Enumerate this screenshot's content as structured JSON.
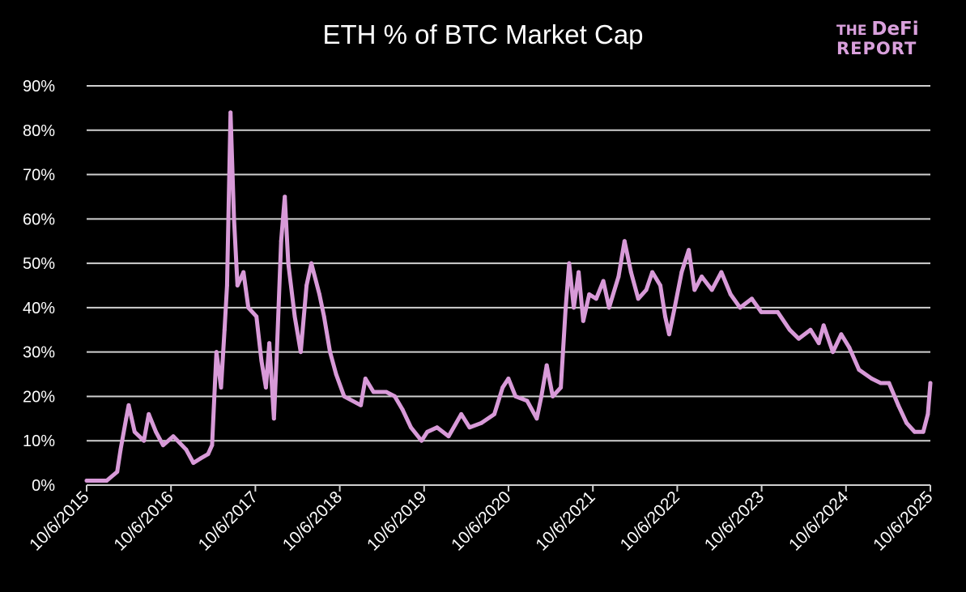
{
  "chart_data": {
    "type": "line",
    "title": "ETH % of BTC Market Cap",
    "xlabel": "",
    "ylabel": "",
    "ylim": [
      0,
      90
    ],
    "yticks": [
      "0%",
      "10%",
      "20%",
      "30%",
      "40%",
      "50%",
      "60%",
      "70%",
      "80%",
      "90%"
    ],
    "xlim": [
      "2015-10-06",
      "2025-10-06"
    ],
    "xticks": [
      "10/6/2015",
      "10/6/2016",
      "10/6/2017",
      "10/6/2018",
      "10/6/2019",
      "10/6/2020",
      "10/6/2021",
      "10/6/2022",
      "10/6/2023",
      "10/6/2024",
      "10/6/2025"
    ],
    "grid": true,
    "line_color": "#d89ad8",
    "series": [
      {
        "points": [
          [
            "2015-10-06",
            1
          ],
          [
            "2016-01-01",
            1
          ],
          [
            "2016-02-15",
            3
          ],
          [
            "2016-03-01",
            8
          ],
          [
            "2016-03-25",
            15
          ],
          [
            "2016-04-05",
            18
          ],
          [
            "2016-05-01",
            12
          ],
          [
            "2016-06-10",
            10
          ],
          [
            "2016-07-01",
            16
          ],
          [
            "2016-08-01",
            12
          ],
          [
            "2016-09-01",
            9
          ],
          [
            "2016-10-15",
            11
          ],
          [
            "2016-12-10",
            8
          ],
          [
            "2017-01-10",
            5
          ],
          [
            "2017-02-10",
            6
          ],
          [
            "2017-03-15",
            7
          ],
          [
            "2017-04-01",
            9
          ],
          [
            "2017-04-20",
            30
          ],
          [
            "2017-05-10",
            22
          ],
          [
            "2017-05-25",
            35
          ],
          [
            "2017-06-05",
            45
          ],
          [
            "2017-06-20",
            84
          ],
          [
            "2017-07-05",
            60
          ],
          [
            "2017-07-20",
            45
          ],
          [
            "2017-08-15",
            48
          ],
          [
            "2017-09-05",
            40
          ],
          [
            "2017-10-10",
            38
          ],
          [
            "2017-11-01",
            28
          ],
          [
            "2017-11-20",
            22
          ],
          [
            "2017-12-05",
            32
          ],
          [
            "2017-12-25",
            15
          ],
          [
            "2018-01-05",
            28
          ],
          [
            "2018-01-25",
            55
          ],
          [
            "2018-02-10",
            65
          ],
          [
            "2018-02-25",
            50
          ],
          [
            "2018-03-25",
            38
          ],
          [
            "2018-04-20",
            30
          ],
          [
            "2018-05-15",
            45
          ],
          [
            "2018-06-05",
            50
          ],
          [
            "2018-07-10",
            43
          ],
          [
            "2018-07-30",
            38
          ],
          [
            "2018-08-25",
            30
          ],
          [
            "2018-09-20",
            25
          ],
          [
            "2018-10-25",
            20
          ],
          [
            "2019-01-05",
            18
          ],
          [
            "2019-01-25",
            24
          ],
          [
            "2019-03-01",
            21
          ],
          [
            "2019-04-25",
            21
          ],
          [
            "2019-06-01",
            20
          ],
          [
            "2019-07-05",
            17
          ],
          [
            "2019-08-10",
            13
          ],
          [
            "2019-09-25",
            10
          ],
          [
            "2019-10-20",
            12
          ],
          [
            "2019-12-01",
            13
          ],
          [
            "2020-01-20",
            11
          ],
          [
            "2020-03-15",
            16
          ],
          [
            "2020-04-20",
            13
          ],
          [
            "2020-06-10",
            14
          ],
          [
            "2020-08-05",
            16
          ],
          [
            "2020-09-10",
            22
          ],
          [
            "2020-10-05",
            24
          ],
          [
            "2020-11-05",
            20
          ],
          [
            "2020-12-25",
            19
          ],
          [
            "2021-02-05",
            15
          ],
          [
            "2021-02-25",
            20
          ],
          [
            "2021-03-20",
            27
          ],
          [
            "2021-04-15",
            20
          ],
          [
            "2021-05-20",
            22
          ],
          [
            "2021-06-10",
            40
          ],
          [
            "2021-06-25",
            50
          ],
          [
            "2021-07-15",
            40
          ],
          [
            "2021-08-05",
            48
          ],
          [
            "2021-08-25",
            37
          ],
          [
            "2021-09-20",
            43
          ],
          [
            "2021-10-20",
            42
          ],
          [
            "2021-11-20",
            46
          ],
          [
            "2021-12-15",
            40
          ],
          [
            "2022-01-25",
            47
          ],
          [
            "2022-02-20",
            55
          ],
          [
            "2022-03-20",
            48
          ],
          [
            "2022-04-20",
            42
          ],
          [
            "2022-05-25",
            44
          ],
          [
            "2022-06-20",
            48
          ],
          [
            "2022-07-25",
            45
          ],
          [
            "2022-08-15",
            38
          ],
          [
            "2022-09-01",
            34
          ],
          [
            "2022-09-25",
            40
          ],
          [
            "2022-10-25",
            48
          ],
          [
            "2022-11-25",
            53
          ],
          [
            "2022-12-20",
            44
          ],
          [
            "2023-01-20",
            47
          ],
          [
            "2023-03-05",
            44
          ],
          [
            "2023-04-15",
            48
          ],
          [
            "2023-05-25",
            43
          ],
          [
            "2023-07-05",
            40
          ],
          [
            "2023-08-25",
            42
          ],
          [
            "2023-10-05",
            39
          ],
          [
            "2023-12-15",
            39
          ],
          [
            "2024-02-05",
            35
          ],
          [
            "2024-03-15",
            33
          ],
          [
            "2024-05-05",
            35
          ],
          [
            "2024-06-10",
            32
          ],
          [
            "2024-07-01",
            36
          ],
          [
            "2024-08-10",
            30
          ],
          [
            "2024-09-15",
            34
          ],
          [
            "2024-10-20",
            31
          ],
          [
            "2024-12-01",
            26
          ],
          [
            "2025-01-25",
            24
          ],
          [
            "2025-03-05",
            23
          ],
          [
            "2025-04-10",
            23
          ],
          [
            "2025-05-20",
            18
          ],
          [
            "2025-06-25",
            14
          ],
          [
            "2025-07-30",
            12
          ],
          [
            "2025-09-05",
            12
          ],
          [
            "2025-09-25",
            16
          ],
          [
            "2025-10-06",
            23
          ]
        ]
      }
    ]
  },
  "logo": {
    "line1_small": "THE",
    "line1_big": "DeFi",
    "line2": "REPORT"
  }
}
